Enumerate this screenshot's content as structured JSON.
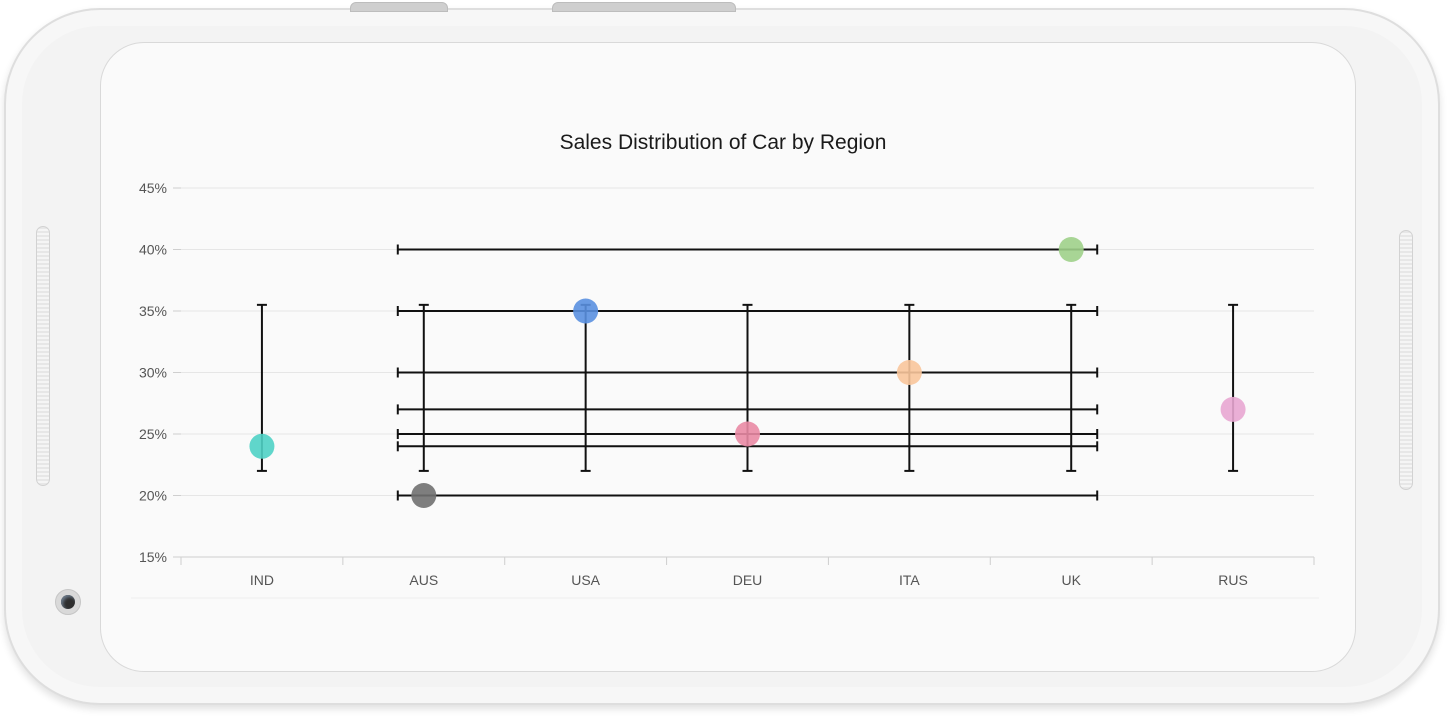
{
  "chart_data": {
    "type": "scatter",
    "title": "Sales Distribution of Car by Region",
    "xlabel": "",
    "ylabel": "",
    "categories": [
      "IND",
      "AUS",
      "USA",
      "DEU",
      "ITA",
      "UK",
      "RUS"
    ],
    "y_ticks": [
      "15%",
      "20%",
      "25%",
      "30%",
      "35%",
      "40%",
      "45%"
    ],
    "ylim": [
      15,
      45
    ],
    "grid": true,
    "points": [
      {
        "x": "IND",
        "y": 24,
        "color": "#4fd1c5",
        "y_error": [
          22,
          35.5
        ]
      },
      {
        "x": "AUS",
        "y": 20,
        "color": "#707070",
        "y_error": [
          22,
          35.5
        ],
        "x_error": [
          "AUS",
          "UK"
        ]
      },
      {
        "x": "USA",
        "y": 35,
        "color": "#5a90e0",
        "y_error": [
          22,
          35.5
        ]
      },
      {
        "x": "DEU",
        "y": 25,
        "color": "#e98aa4",
        "y_error": [
          22,
          35.5
        ]
      },
      {
        "x": "ITA",
        "y": 30,
        "color": "#f8c59b",
        "y_error": [
          22,
          35.5
        ]
      },
      {
        "x": "UK",
        "y": 40,
        "color": "#9fd089",
        "y_error": [
          22,
          35.5
        ]
      },
      {
        "x": "RUS",
        "y": 27,
        "color": "#e8a6d2",
        "y_error": [
          22,
          35.5
        ]
      }
    ],
    "x_error_lines": [
      {
        "y": 40,
        "from": "AUS",
        "to": "UK"
      },
      {
        "y": 35,
        "from": "AUS",
        "to": "UK"
      },
      {
        "y": 30,
        "from": "AUS",
        "to": "UK"
      },
      {
        "y": 27,
        "from": "AUS",
        "to": "UK"
      },
      {
        "y": 25,
        "from": "AUS",
        "to": "UK"
      },
      {
        "y": 24,
        "from": "AUS",
        "to": "UK"
      },
      {
        "y": 20,
        "from": "AUS",
        "to": "UK"
      }
    ]
  }
}
